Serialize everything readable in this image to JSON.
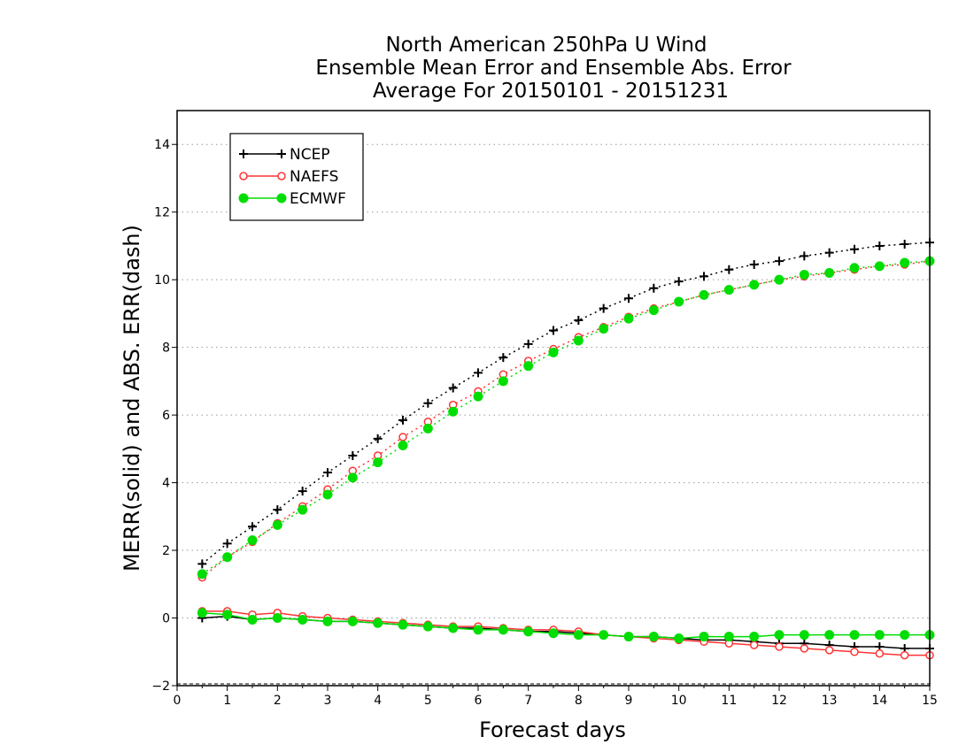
{
  "chart_data": {
    "type": "line",
    "title_lines": [
      "North American 250hPa U Wind",
      "Ensemble Mean Error and Ensemble Abs. Error",
      "Average For 20150101 - 20151231"
    ],
    "xlabel": "Forecast days",
    "ylabel": "MERR(solid) and ABS. ERR(dash)",
    "xlim": [
      0,
      15
    ],
    "ylim": [
      -2,
      15
    ],
    "x_ticks": [
      0,
      1,
      2,
      3,
      4,
      5,
      6,
      7,
      8,
      9,
      10,
      11,
      12,
      13,
      14,
      15
    ],
    "y_ticks": [
      -2,
      0,
      2,
      4,
      6,
      8,
      10,
      12,
      14
    ],
    "grid": "horizontal dotted",
    "legend_position": "top-left",
    "x": [
      0.5,
      1,
      1.5,
      2,
      2.5,
      3,
      3.5,
      4,
      4.5,
      5,
      5.5,
      6,
      6.5,
      7,
      7.5,
      8,
      8.5,
      9,
      9.5,
      10,
      10.5,
      11,
      11.5,
      12,
      12.5,
      13,
      13.5,
      14,
      14.5,
      15
    ],
    "series": [
      {
        "name": "NCEP",
        "color": "#000000",
        "marker": "plus",
        "abs_err": [
          1.6,
          2.2,
          2.7,
          3.2,
          3.75,
          4.3,
          4.8,
          5.3,
          5.85,
          6.35,
          6.8,
          7.25,
          7.7,
          8.1,
          8.5,
          8.8,
          9.15,
          9.45,
          9.75,
          9.95,
          10.1,
          10.3,
          10.45,
          10.55,
          10.7,
          10.8,
          10.9,
          11.0,
          11.05,
          11.1
        ],
        "mean_err": [
          0.0,
          0.05,
          -0.05,
          0.0,
          -0.05,
          -0.1,
          -0.1,
          -0.15,
          -0.2,
          -0.25,
          -0.3,
          -0.3,
          -0.35,
          -0.4,
          -0.4,
          -0.45,
          -0.5,
          -0.55,
          -0.55,
          -0.6,
          -0.65,
          -0.65,
          -0.7,
          -0.75,
          -0.75,
          -0.8,
          -0.85,
          -0.85,
          -0.9,
          -0.9
        ]
      },
      {
        "name": "NAEFS",
        "color": "#ff3333",
        "marker": "open-circle",
        "abs_err": [
          1.2,
          1.8,
          2.25,
          2.8,
          3.3,
          3.8,
          4.35,
          4.8,
          5.35,
          5.8,
          6.3,
          6.7,
          7.2,
          7.6,
          7.95,
          8.3,
          8.6,
          8.9,
          9.15,
          9.35,
          9.55,
          9.7,
          9.85,
          10.0,
          10.1,
          10.2,
          10.3,
          10.4,
          10.45,
          10.55
        ],
        "mean_err": [
          0.2,
          0.2,
          0.1,
          0.15,
          0.05,
          0.0,
          -0.05,
          -0.1,
          -0.15,
          -0.2,
          -0.25,
          -0.25,
          -0.3,
          -0.35,
          -0.35,
          -0.4,
          -0.5,
          -0.55,
          -0.6,
          -0.65,
          -0.7,
          -0.75,
          -0.8,
          -0.85,
          -0.9,
          -0.95,
          -1.0,
          -1.05,
          -1.1,
          -1.1
        ]
      },
      {
        "name": "ECMWF",
        "color": "#00dd00",
        "marker": "filled-circle",
        "abs_err": [
          1.3,
          1.8,
          2.3,
          2.75,
          3.2,
          3.65,
          4.15,
          4.6,
          5.1,
          5.6,
          6.1,
          6.55,
          7.0,
          7.45,
          7.85,
          8.2,
          8.55,
          8.85,
          9.1,
          9.35,
          9.55,
          9.7,
          9.85,
          10.0,
          10.15,
          10.2,
          10.35,
          10.4,
          10.5,
          10.55
        ],
        "mean_err": [
          0.15,
          0.1,
          -0.05,
          0.0,
          -0.05,
          -0.1,
          -0.1,
          -0.15,
          -0.2,
          -0.25,
          -0.3,
          -0.35,
          -0.35,
          -0.4,
          -0.45,
          -0.5,
          -0.5,
          -0.55,
          -0.55,
          -0.6,
          -0.55,
          -0.55,
          -0.55,
          -0.5,
          -0.5,
          -0.5,
          -0.5,
          -0.5,
          -0.5,
          -0.5
        ]
      }
    ]
  }
}
